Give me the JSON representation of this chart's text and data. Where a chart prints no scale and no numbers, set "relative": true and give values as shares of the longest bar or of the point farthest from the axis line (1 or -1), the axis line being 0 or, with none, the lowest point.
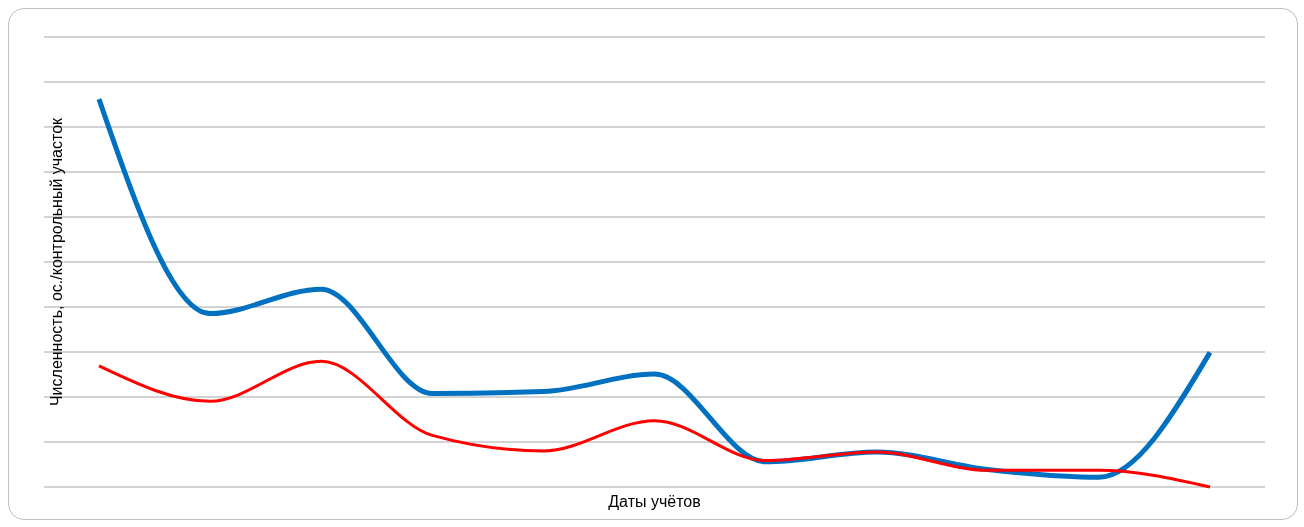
{
  "chart_data": {
    "type": "line",
    "relative": true,
    "xlabel": "Даты учётов",
    "ylabel": "Численность, ос./контрольный участок",
    "grid": "y",
    "categories": [
      null,
      null,
      null,
      null,
      null,
      null,
      null,
      null,
      null,
      null,
      null
    ],
    "series": [
      {
        "color": "#0070c0",
        "values": [
          1,
          0.447,
          0.51,
          0.241,
          0.246,
          0.291,
          0.065,
          0.09,
          0.045,
          0.025,
          0.347
        ]
      },
      {
        "color": "#ff0000",
        "values": [
          0.312,
          0.221,
          0.324,
          0.133,
          0.093,
          0.171,
          0.068,
          0.09,
          0.043,
          0.043,
          0
        ]
      }
    ]
  }
}
